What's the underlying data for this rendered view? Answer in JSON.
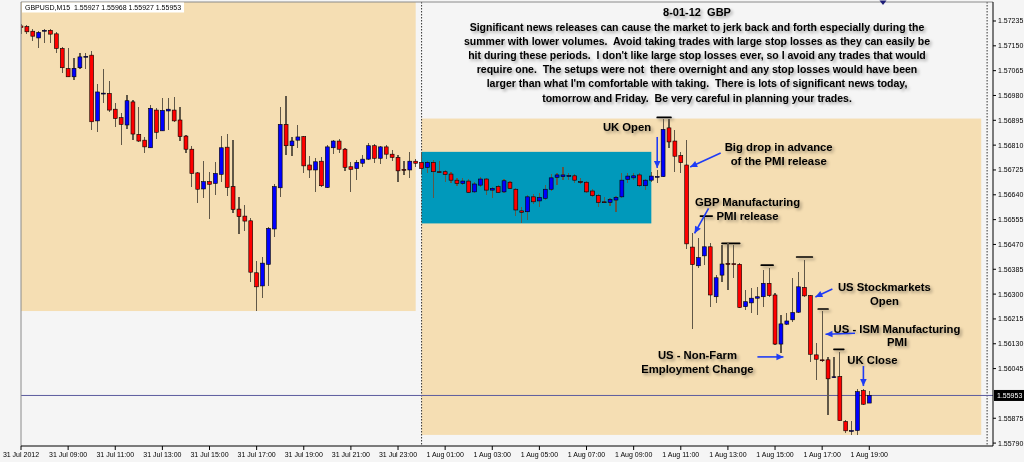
{
  "chart_data": {
    "type": "candlestick",
    "title": "GBPUSD,M15  1.55927 1.55968 1.55927 1.55953",
    "subtitle": "8-01-12  GBP",
    "annotations": [
      "Significant news releases can cause the market to jerk back and forth especially during the\nsummer with lower volumes.  Avoid taking trades with large stop losses as they can easily be\nhit during these periods.  I don't like large stop losses ever, so I avoid any trades that would\nrequire one.  The setups were not  there overnight and any stop losses would have been\nlarger than what I'm comfortable with taking.  There is lots of significant news today,\ntomorrow and Friday.  Be very careful in planning your trades.",
      {
        "text": "UK Open",
        "x": "2012-08-01T10:00",
        "y": 1.56725
      },
      {
        "text": "Big drop in advance\nof the PMI release",
        "x": "2012-08-01T11:15",
        "y": 1.56742
      },
      {
        "text": "GBP Manufacturing\nPMI release",
        "x": "2012-08-01T11:30",
        "y": 1.56508
      },
      {
        "text": "US - Non-Farm\nEmployment Change",
        "x": "2012-08-01T15:15",
        "y": 1.56098
      },
      {
        "text": "US Stockmarkets\nOpen",
        "x": "2012-08-01T16:30",
        "y": 1.56295
      },
      "US - ISM Manufacturing\nPMI",
      {
        "text": "UK Close",
        "x": "2012-08-01T18:45",
        "y": 1.55975
      }
    ],
    "x": [
      "2012-07-31T07:00",
      "2012-07-31T07:15",
      "2012-07-31T07:30",
      "2012-07-31T07:45",
      "2012-07-31T08:00",
      "2012-07-31T08:15",
      "2012-07-31T08:30",
      "2012-07-31T08:45",
      "2012-07-31T09:00",
      "2012-07-31T09:15",
      "2012-07-31T09:30",
      "2012-07-31T09:45",
      "2012-07-31T10:00",
      "2012-07-31T10:15",
      "2012-07-31T10:30",
      "2012-07-31T10:45",
      "2012-07-31T11:00",
      "2012-07-31T11:15",
      "2012-07-31T11:30",
      "2012-07-31T11:45",
      "2012-07-31T12:00",
      "2012-07-31T12:15",
      "2012-07-31T12:30",
      "2012-07-31T12:45",
      "2012-07-31T13:00",
      "2012-07-31T13:15",
      "2012-07-31T13:30",
      "2012-07-31T13:45",
      "2012-07-31T14:00",
      "2012-07-31T14:15",
      "2012-07-31T14:30",
      "2012-07-31T14:45",
      "2012-07-31T15:00",
      "2012-07-31T15:15",
      "2012-07-31T15:30",
      "2012-07-31T15:45",
      "2012-07-31T16:00",
      "2012-07-31T16:15",
      "2012-07-31T16:30",
      "2012-07-31T16:45",
      "2012-07-31T17:00",
      "2012-07-31T17:15",
      "2012-07-31T17:30",
      "2012-07-31T17:45",
      "2012-07-31T18:00",
      "2012-07-31T18:15",
      "2012-07-31T18:30",
      "2012-07-31T18:45",
      "2012-07-31T19:00",
      "2012-07-31T19:15",
      "2012-07-31T19:30",
      "2012-07-31T19:45",
      "2012-07-31T20:00",
      "2012-07-31T20:15",
      "2012-07-31T20:30",
      "2012-07-31T20:45",
      "2012-07-31T21:00",
      "2012-07-31T21:15",
      "2012-07-31T21:30",
      "2012-07-31T21:45",
      "2012-07-31T22:00",
      "2012-07-31T22:15",
      "2012-07-31T22:30",
      "2012-07-31T22:45",
      "2012-07-31T23:00",
      "2012-07-31T23:15",
      "2012-07-31T23:30",
      "2012-07-31T23:45",
      "2012-08-01T00:00",
      "2012-08-01T00:15",
      "2012-08-01T00:30",
      "2012-08-01T00:45",
      "2012-08-01T01:00",
      "2012-08-01T01:15",
      "2012-08-01T01:30",
      "2012-08-01T01:45",
      "2012-08-01T02:00",
      "2012-08-01T02:15",
      "2012-08-01T02:30",
      "2012-08-01T02:45",
      "2012-08-01T03:00",
      "2012-08-01T03:15",
      "2012-08-01T03:30",
      "2012-08-01T03:45",
      "2012-08-01T04:00",
      "2012-08-01T04:15",
      "2012-08-01T04:30",
      "2012-08-01T04:45",
      "2012-08-01T05:00",
      "2012-08-01T05:15",
      "2012-08-01T05:30",
      "2012-08-01T05:45",
      "2012-08-01T06:00",
      "2012-08-01T06:15",
      "2012-08-01T06:30",
      "2012-08-01T06:45",
      "2012-08-01T07:00",
      "2012-08-01T07:15",
      "2012-08-01T07:30",
      "2012-08-01T07:45",
      "2012-08-01T08:00",
      "2012-08-01T08:15",
      "2012-08-01T08:30",
      "2012-08-01T08:45",
      "2012-08-01T09:00",
      "2012-08-01T09:15",
      "2012-08-01T09:30",
      "2012-08-01T09:45",
      "2012-08-01T10:00",
      "2012-08-01T10:15",
      "2012-08-01T10:30",
      "2012-08-01T10:45",
      "2012-08-01T11:00",
      "2012-08-01T11:15",
      "2012-08-01T11:30",
      "2012-08-01T11:45",
      "2012-08-01T12:00",
      "2012-08-01T12:15",
      "2012-08-01T12:30",
      "2012-08-01T12:45",
      "2012-08-01T13:00",
      "2012-08-01T13:15",
      "2012-08-01T13:30",
      "2012-08-01T13:45",
      "2012-08-01T14:00",
      "2012-08-01T14:15",
      "2012-08-01T14:30",
      "2012-08-01T14:45",
      "2012-08-01T15:00",
      "2012-08-01T15:15",
      "2012-08-01T15:30",
      "2012-08-01T15:45",
      "2012-08-01T16:00",
      "2012-08-01T16:15",
      "2012-08-01T16:30",
      "2012-08-01T16:45",
      "2012-08-01T17:00",
      "2012-08-01T17:15",
      "2012-08-01T17:30",
      "2012-08-01T17:45",
      "2012-08-01T18:00",
      "2012-08-01T18:15",
      "2012-08-01T18:30",
      "2012-08-01T18:45",
      "2012-08-01T19:00"
    ],
    "ohlc": [
      [
        1.57218,
        1.57226,
        1.57192,
        1.57213
      ],
      [
        1.57216,
        1.5722,
        1.57189,
        1.57198
      ],
      [
        1.572,
        1.57206,
        1.57167,
        1.57183
      ],
      [
        1.57177,
        1.572,
        1.57141,
        1.57196
      ],
      [
        1.57202,
        1.57209,
        1.57158,
        1.57203
      ],
      [
        1.57203,
        1.57208,
        1.5716,
        1.5719
      ],
      [
        1.57191,
        1.57198,
        1.57124,
        1.57141
      ],
      [
        1.57141,
        1.57146,
        1.57057,
        1.57075
      ],
      [
        1.57072,
        1.57144,
        1.57042,
        1.57044
      ],
      [
        1.57044,
        1.57107,
        1.57032,
        1.57073
      ],
      [
        1.57075,
        1.57127,
        1.57072,
        1.57112
      ],
      [
        1.57113,
        1.57127,
        1.57069,
        1.57114
      ],
      [
        1.57118,
        1.57132,
        1.56861,
        1.5689
      ],
      [
        1.56893,
        1.57019,
        1.56854,
        1.56992
      ],
      [
        1.56987,
        1.5707,
        1.56953,
        1.56988
      ],
      [
        1.56987,
        1.57029,
        1.56924,
        1.5693
      ],
      [
        1.56933,
        1.56953,
        1.56873,
        1.56901
      ],
      [
        1.56904,
        1.56919,
        1.5681,
        1.56881
      ],
      [
        1.56879,
        1.56981,
        1.56864,
        1.56962
      ],
      [
        1.56958,
        1.56964,
        1.56827,
        1.56848
      ],
      [
        1.56847,
        1.56939,
        1.56821,
        1.56824
      ],
      [
        1.56827,
        1.56839,
        1.56784,
        1.56804
      ],
      [
        1.56801,
        1.56947,
        1.56799,
        1.56936
      ],
      [
        1.5693,
        1.56938,
        1.5683,
        1.56854
      ],
      [
        1.56859,
        1.5697,
        1.56857,
        1.56929
      ],
      [
        1.56927,
        1.5697,
        1.56861,
        1.56933
      ],
      [
        1.5693,
        1.56975,
        1.5689,
        1.56893
      ],
      [
        1.56896,
        1.56941,
        1.56824,
        1.56839
      ],
      [
        1.56841,
        1.56844,
        1.56784,
        1.56796
      ],
      [
        1.56796,
        1.56808,
        1.56668,
        1.56713
      ],
      [
        1.56715,
        1.56719,
        1.56611,
        1.56659
      ],
      [
        1.5666,
        1.56755,
        1.56628,
        1.56685
      ],
      [
        1.56685,
        1.56719,
        1.56557,
        1.56676
      ],
      [
        1.56679,
        1.56751,
        1.56639,
        1.56713
      ],
      [
        1.5671,
        1.56842,
        1.56685,
        1.56801
      ],
      [
        1.56803,
        1.56848,
        1.56636,
        1.56665
      ],
      [
        1.56668,
        1.56827,
        1.56576,
        1.5659
      ],
      [
        1.56591,
        1.56633,
        1.56505,
        1.56565
      ],
      [
        1.56567,
        1.56605,
        1.56516,
        1.5655
      ],
      [
        1.56551,
        1.56559,
        1.5634,
        1.56375
      ],
      [
        1.56373,
        1.56413,
        1.56242,
        1.56325
      ],
      [
        1.56328,
        1.56426,
        1.56286,
        1.56406
      ],
      [
        1.56402,
        1.5653,
        1.56329,
        1.56525
      ],
      [
        1.56523,
        1.56677,
        1.56494,
        1.56668
      ],
      [
        1.56664,
        1.56941,
        1.56633,
        1.56881
      ],
      [
        1.56881,
        1.56979,
        1.56776,
        1.56808
      ],
      [
        1.56808,
        1.56839,
        1.56774,
        1.56824
      ],
      [
        1.56827,
        1.56879,
        1.56799,
        1.56838
      ],
      [
        1.56839,
        1.56841,
        1.56713,
        1.56739
      ],
      [
        1.56742,
        1.56774,
        1.56696,
        1.56725
      ],
      [
        1.56725,
        1.56767,
        1.56648,
        1.56753
      ],
      [
        1.56755,
        1.5677,
        1.56668,
        1.56671
      ],
      [
        1.56665,
        1.5681,
        1.56663,
        1.56804
      ],
      [
        1.56801,
        1.56827,
        1.56779,
        1.56824
      ],
      [
        1.56824,
        1.56831,
        1.56782,
        1.56796
      ],
      [
        1.56796,
        1.56801,
        1.56722,
        1.56734
      ],
      [
        1.56736,
        1.56753,
        1.5665,
        1.56727
      ],
      [
        1.5673,
        1.56759,
        1.5669,
        1.56751
      ],
      [
        1.56748,
        1.56776,
        1.56736,
        1.56762
      ],
      [
        1.56762,
        1.56816,
        1.56759,
        1.56808
      ],
      [
        1.56808,
        1.56814,
        1.56748,
        1.56765
      ],
      [
        1.56765,
        1.56808,
        1.56744,
        1.56804
      ],
      [
        1.56804,
        1.5681,
        1.56761,
        1.56779
      ],
      [
        1.56779,
        1.56793,
        1.56756,
        1.56768
      ],
      [
        1.56768,
        1.56776,
        1.56685,
        1.56722
      ],
      [
        1.56727,
        1.56756,
        1.56708,
        1.56725
      ],
      [
        1.56725,
        1.56787,
        1.56696,
        1.56755
      ],
      [
        1.56755,
        1.56761,
        1.56736,
        1.56748
      ],
      [
        1.56751,
        1.56787,
        1.56713,
        1.5673
      ],
      [
        1.56734,
        1.56755,
        1.56713,
        1.56751
      ],
      [
        1.56751,
        1.56759,
        1.5663,
        1.56719
      ],
      [
        1.56719,
        1.56755,
        1.56713,
        1.56718
      ],
      [
        1.56719,
        1.56725,
        1.56685,
        1.5671
      ],
      [
        1.56711,
        1.56717,
        1.56681,
        1.5669
      ],
      [
        1.5669,
        1.56696,
        1.56671,
        1.56679
      ],
      [
        1.56679,
        1.56696,
        1.56673,
        1.56687
      ],
      [
        1.56687,
        1.56694,
        1.56645,
        1.56648
      ],
      [
        1.5665,
        1.56685,
        1.56645,
        1.56677
      ],
      [
        1.56673,
        1.567,
        1.56668,
        1.56694
      ],
      [
        1.56694,
        1.56698,
        1.56639,
        1.56656
      ],
      [
        1.56656,
        1.56668,
        1.56628,
        1.56662
      ],
      [
        1.56668,
        1.56673,
        1.56645,
        1.56648
      ],
      [
        1.5665,
        1.56694,
        1.56647,
        1.56688
      ],
      [
        1.56683,
        1.56687,
        1.56659,
        1.56662
      ],
      [
        1.56659,
        1.56664,
        1.56567,
        1.56588
      ],
      [
        1.56585,
        1.56599,
        1.56542,
        1.5658
      ],
      [
        1.56582,
        1.56639,
        1.56553,
        1.56633
      ],
      [
        1.56633,
        1.56641,
        1.56607,
        1.56616
      ],
      [
        1.56619,
        1.56645,
        1.56597,
        1.56631
      ],
      [
        1.56628,
        1.56673,
        1.56622,
        1.56659
      ],
      [
        1.56659,
        1.56711,
        1.56654,
        1.56698
      ],
      [
        1.567,
        1.56715,
        1.56673,
        1.56708
      ],
      [
        1.56702,
        1.56736,
        1.5669,
        1.56708
      ],
      [
        1.56705,
        1.56713,
        1.5669,
        1.56706
      ],
      [
        1.56705,
        1.5671,
        1.56679,
        1.5669
      ],
      [
        1.56685,
        1.56696,
        1.56677,
        1.56684
      ],
      [
        1.56683,
        1.56687,
        1.56647,
        1.5665
      ],
      [
        1.56653,
        1.56659,
        1.56633,
        1.56637
      ],
      [
        1.56637,
        1.56641,
        1.56599,
        1.56614
      ],
      [
        1.56616,
        1.56633,
        1.56611,
        1.56615
      ],
      [
        1.56614,
        1.5663,
        1.56602,
        1.56624
      ],
      [
        1.56622,
        1.56636,
        1.56582,
        1.56631
      ],
      [
        1.56633,
        1.56713,
        1.5663,
        1.5669
      ],
      [
        1.56693,
        1.56713,
        1.56679,
        1.56704
      ],
      [
        1.56698,
        1.56713,
        1.5669,
        1.56705
      ],
      [
        1.56708,
        1.56713,
        1.56668,
        1.56671
      ],
      [
        1.56671,
        1.56694,
        1.56656,
        1.5669
      ],
      [
        1.5669,
        1.56719,
        1.56685,
        1.56704
      ],
      [
        1.56702,
        1.56725,
        1.56679,
        1.56703
      ],
      [
        1.56702,
        1.56901,
        1.567,
        1.56864
      ],
      [
        1.56869,
        1.56901,
        1.56799,
        1.56821
      ],
      [
        1.56824,
        1.56861,
        1.56719,
        1.56772
      ],
      [
        1.56774,
        1.56787,
        1.56713,
        1.5675
      ],
      [
        1.56742,
        1.56827,
        1.56453,
        1.56472
      ],
      [
        1.56461,
        1.56508,
        1.5618,
        1.56401
      ],
      [
        1.56397,
        1.56491,
        1.56389,
        1.56425
      ],
      [
        1.56431,
        1.56567,
        1.564,
        1.56462
      ],
      [
        1.56462,
        1.56474,
        1.56257,
        1.56297
      ],
      [
        1.56291,
        1.56365,
        1.56269,
        1.56356
      ],
      [
        1.56365,
        1.56468,
        1.56343,
        1.56403
      ],
      [
        1.56405,
        1.56474,
        1.56314,
        1.56404
      ],
      [
        1.56404,
        1.56468,
        1.56354,
        1.56403
      ],
      [
        1.56402,
        1.56405,
        1.56252,
        1.56254
      ],
      [
        1.56257,
        1.56314,
        1.56246,
        1.56274
      ],
      [
        1.5627,
        1.5632,
        1.56235,
        1.56286
      ],
      [
        1.56286,
        1.56325,
        1.56229,
        1.56291
      ],
      [
        1.56291,
        1.56383,
        1.56257,
        1.56337
      ],
      [
        1.56337,
        1.56391,
        1.56291,
        1.56295
      ],
      [
        1.56297,
        1.56303,
        1.56126,
        1.56129
      ],
      [
        1.56129,
        1.56229,
        1.56098,
        1.56198
      ],
      [
        1.56197,
        1.56237,
        1.56194,
        1.56208
      ],
      [
        1.56212,
        1.56356,
        1.56206,
        1.56237
      ],
      [
        1.56238,
        1.56377,
        1.56235,
        1.56325
      ],
      [
        1.56323,
        1.56417,
        1.56291,
        1.56294
      ],
      [
        1.56295,
        1.56297,
        1.56069,
        1.56094
      ],
      [
        1.56092,
        1.56132,
        1.56006,
        1.56077
      ],
      [
        1.56075,
        1.56242,
        1.56069,
        1.56074
      ],
      [
        1.56075,
        1.56086,
        1.55887,
        1.5601
      ],
      [
        1.56016,
        1.56086,
        1.56012,
        1.56017
      ],
      [
        1.56018,
        1.56103,
        1.55864,
        1.55867
      ],
      [
        1.55864,
        1.5587,
        1.55824,
        1.55832
      ],
      [
        1.55832,
        1.55864,
        1.55818,
        1.55833
      ],
      [
        1.55833,
        1.55975,
        1.55818,
        1.55966
      ],
      [
        1.5597,
        1.55975,
        1.55921,
        1.55923
      ],
      [
        1.55927,
        1.55968,
        1.55927,
        1.55953
      ]
    ],
    "colors": [
      "#ff0000",
      "#ff0000",
      "#ff0000",
      "#0000ff",
      "#0000ff",
      "#ff0000",
      "#ff0000",
      "#ff0000",
      "#ff0000",
      "#0000ff",
      "#0000ff",
      "#0000ff",
      "#ff0000",
      "#0000ff",
      "#0000ff",
      "#ff0000",
      "#ff0000",
      "#ff0000",
      "#0000ff",
      "#ff0000",
      "#ff0000",
      "#ff0000",
      "#0000ff",
      "#ff0000",
      "#0000ff",
      "#0000ff",
      "#ff0000",
      "#ff0000",
      "#ff0000",
      "#ff0000",
      "#ff0000",
      "#0000ff",
      "#ff0000",
      "#0000ff",
      "#0000ff",
      "#ff0000",
      "#ff0000",
      "#ff0000",
      "#ff0000",
      "#ff0000",
      "#ff0000",
      "#0000ff",
      "#0000ff",
      "#0000ff",
      "#0000ff",
      "#ff0000",
      "#0000ff",
      "#0000ff",
      "#ff0000",
      "#ff0000",
      "#0000ff",
      "#ff0000",
      "#0000ff",
      "#0000ff",
      "#ff0000",
      "#ff0000",
      "#ff0000",
      "#0000ff",
      "#0000ff",
      "#0000ff",
      "#ff0000",
      "#0000ff",
      "#ff0000",
      "#ff0000",
      "#ff0000",
      "#ff0000",
      "#0000ff",
      "#ff0000",
      "#ff0000",
      "#0000ff",
      "#ff0000",
      "#ff0000",
      "#ff0000",
      "#ff0000",
      "#ff0000",
      "#0000ff",
      "#ff0000",
      "#0000ff",
      "#0000ff",
      "#ff0000",
      "#0000ff",
      "#ff0000",
      "#0000ff",
      "#ff0000",
      "#ff0000",
      "#ff0000",
      "#0000ff",
      "#ff0000",
      "#0000ff",
      "#0000ff",
      "#0000ff",
      "#0000ff",
      "#0000ff",
      "#0000ff",
      "#ff0000",
      "#ff0000",
      "#ff0000",
      "#ff0000",
      "#ff0000",
      "#ff0000",
      "#0000ff",
      "#0000ff",
      "#0000ff",
      "#0000ff",
      "#0000ff",
      "#ff0000",
      "#0000ff",
      "#0000ff",
      "#0000ff",
      "#0000ff",
      "#ff0000",
      "#ff0000",
      "#ff0000",
      "#ff0000",
      "#ff0000",
      "#0000ff",
      "#0000ff",
      "#ff0000",
      "#0000ff",
      "#0000ff",
      "#ff0000",
      "#ff0000",
      "#ff0000",
      "#0000ff",
      "#0000ff",
      "#0000ff",
      "#0000ff",
      "#ff0000",
      "#ff0000",
      "#0000ff",
      "#0000ff",
      "#0000ff",
      "#0000ff",
      "#ff0000",
      "#ff0000",
      "#ff0000",
      "#ff0000",
      "#ff0000",
      "#0000ff",
      "#ff0000",
      "#ff0000",
      "#0000ff",
      "#0000ff",
      "#ff0000",
      "#0000ff"
    ],
    "series": [
      {
        "type": "line",
        "x": [
          "2012-08-01T10:00",
          "2012-08-01T10:35"
        ],
        "values": [
          1.56905,
          1.56905
        ],
        "color": "#000000"
      },
      {
        "type": "line",
        "x": [
          "2012-08-01T11:50",
          "2012-08-01T12:20"
        ],
        "values": [
          1.56567,
          1.56567
        ],
        "color": "#000000"
      },
      {
        "type": "line",
        "x": [
          "2012-08-01T12:45",
          "2012-08-01T13:30"
        ],
        "values": [
          1.56474,
          1.56474
        ],
        "color": "#000000"
      },
      {
        "type": "line",
        "x": [
          "2012-08-01T14:25",
          "2012-08-01T14:55"
        ],
        "values": [
          1.56399,
          1.56399
        ],
        "color": "#000000"
      },
      {
        "type": "line",
        "x": [
          "2012-08-01T15:55",
          "2012-08-01T16:35"
        ],
        "values": [
          1.56427,
          1.56427
        ],
        "color": "#000000"
      },
      {
        "type": "line",
        "x": [
          "2012-08-01T16:50",
          "2012-08-01T17:15"
        ],
        "values": [
          1.56249,
          1.56249
        ],
        "color": "#000000"
      },
      {
        "type": "line",
        "x": [
          "2012-08-01T17:30",
          "2012-08-01T17:55"
        ],
        "values": [
          1.56111,
          1.56111
        ],
        "color": "#000000"
      }
    ],
    "xlim": [
      "2012-07-31T07:00",
      "2012-08-02T00:15"
    ],
    "ylim": [
      1.5578,
      1.573
    ],
    "xticks": [
      {
        "value": "2012-07-31T07:00",
        "label": "31 Jul 2012"
      },
      {
        "value": "2012-07-31T09:00",
        "label": "31 Jul 09:00"
      },
      {
        "value": "2012-07-31T11:00",
        "label": "31 Jul 11:00"
      },
      {
        "value": "2012-07-31T13:00",
        "label": "31 Jul 13:00"
      },
      {
        "value": "2012-07-31T15:00",
        "label": "31 Jul 15:00"
      },
      {
        "value": "2012-07-31T17:00",
        "label": "31 Jul 17:00"
      },
      {
        "value": "2012-07-31T19:00",
        "label": "31 Jul 19:00"
      },
      {
        "value": "2012-07-31T21:00",
        "label": "31 Jul 21:00"
      },
      {
        "value": "2012-07-31T23:00",
        "label": "31 Jul 23:00"
      },
      {
        "value": "2012-08-01T01:00",
        "label": "1 Aug 01:00"
      },
      {
        "value": "2012-08-01T03:00",
        "label": "1 Aug 03:00"
      },
      {
        "value": "2012-08-01T05:00",
        "label": "1 Aug 05:00"
      },
      {
        "value": "2012-08-01T07:00",
        "label": "1 Aug 07:00"
      },
      {
        "value": "2012-08-01T09:00",
        "label": "1 Aug 09:00"
      },
      {
        "value": "2012-08-01T11:00",
        "label": "1 Aug 11:00"
      },
      {
        "value": "2012-08-01T13:00",
        "label": "1 Aug 13:00"
      },
      {
        "value": "2012-08-01T15:00",
        "label": "1 Aug 15:00"
      },
      {
        "value": "2012-08-01T17:00",
        "label": "1 Aug 17:00"
      },
      {
        "value": "2012-08-01T19:00",
        "label": "1 Aug 19:00"
      }
    ],
    "yticks": [
      1.57235,
      {
        "value": 1.5715,
        "label": "1.57150"
      },
      1.57065,
      {
        "value": 1.5698,
        "label": "1.56980"
      },
      1.56895,
      {
        "value": 1.5681,
        "label": "1.56810"
      },
      1.56725,
      {
        "value": 1.5664,
        "label": "1.56640"
      },
      1.56555,
      {
        "value": 1.5647,
        "label": "1.56470"
      },
      1.56385,
      {
        "value": 1.563,
        "label": "1.56300"
      },
      1.56215,
      {
        "value": 1.5613,
        "label": "1.56130"
      },
      1.56045,
      1.55875,
      {
        "value": 1.5579,
        "label": "1.55790"
      }
    ],
    "ref_lines": [
      {
        "axis": "x",
        "value": "2012-08-01T00:00",
        "line_style": "dotted",
        "color": "#333333"
      },
      {
        "axis": "x",
        "value": "2012-08-02T00:00",
        "line_style": "dotted",
        "color": "#333333"
      },
      {
        "axis": "y",
        "value": 1.55953,
        "label": "1.55953",
        "color": "#5b5b9e"
      }
    ],
    "bands": [
      {
        "axis": "x",
        "from": "2012-07-31T07:00",
        "to": "2012-07-31T23:45",
        "color": "#f5deb3"
      },
      {
        "axis": "x",
        "from": "2012-08-01T00:00",
        "to": "2012-08-01T23:45",
        "color": "#f5deb3"
      },
      {
        "axis": "x",
        "from": "2012-08-01T00:00",
        "to": "2012-08-01T09:45",
        "color": "#0099bb"
      }
    ]
  }
}
